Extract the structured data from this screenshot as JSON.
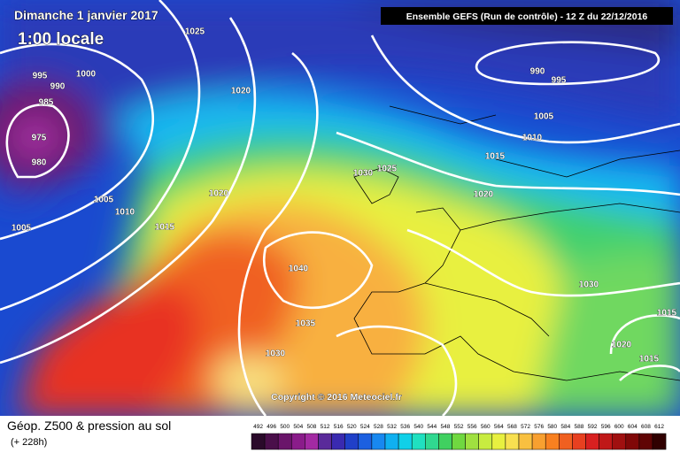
{
  "header": {
    "date": "Dimanche 1 janvier 2017",
    "time": "1:00 locale",
    "run": "Ensemble GEFS  (Run de contrôle)  - 12 Z du 22/12/2016",
    "copyright": "Copyright © 2016 Meteociel.fr"
  },
  "isobars": [
    "1025",
    "995",
    "1000",
    "990",
    "985",
    "975",
    "980",
    "1020",
    "1005",
    "1010",
    "1015",
    "1005",
    "1020",
    "1030",
    "1025",
    "1040",
    "1035",
    "1030",
    "990",
    "995",
    "1005",
    "1010",
    "1015",
    "1020",
    "1030",
    "1015",
    "1020",
    "1015"
  ],
  "footer": {
    "title": "Géop. Z500 & pression au sol",
    "lead": "(+ 228h)"
  },
  "legend": {
    "values": [
      492,
      496,
      500,
      504,
      508,
      512,
      516,
      520,
      524,
      528,
      532,
      536,
      540,
      544,
      548,
      552,
      556,
      560,
      564,
      568,
      572,
      576,
      580,
      584,
      588,
      592,
      596,
      600,
      604,
      608,
      612
    ],
    "colors": [
      "#2a0a2a",
      "#4a0f4a",
      "#6a156a",
      "#8a1c8a",
      "#a32aa3",
      "#5a2a9a",
      "#3a2ab0",
      "#2040c8",
      "#1c60e0",
      "#1888f0",
      "#10b0f0",
      "#10d0e8",
      "#20e0c0",
      "#30d890",
      "#40d060",
      "#70d840",
      "#a0e040",
      "#c8ec40",
      "#e8f040",
      "#f8e050",
      "#f8c040",
      "#f8a030",
      "#f88020",
      "#f06020",
      "#e84020",
      "#d82020",
      "#c01818",
      "#a01010",
      "#800808",
      "#600404",
      "#300000"
    ]
  }
}
